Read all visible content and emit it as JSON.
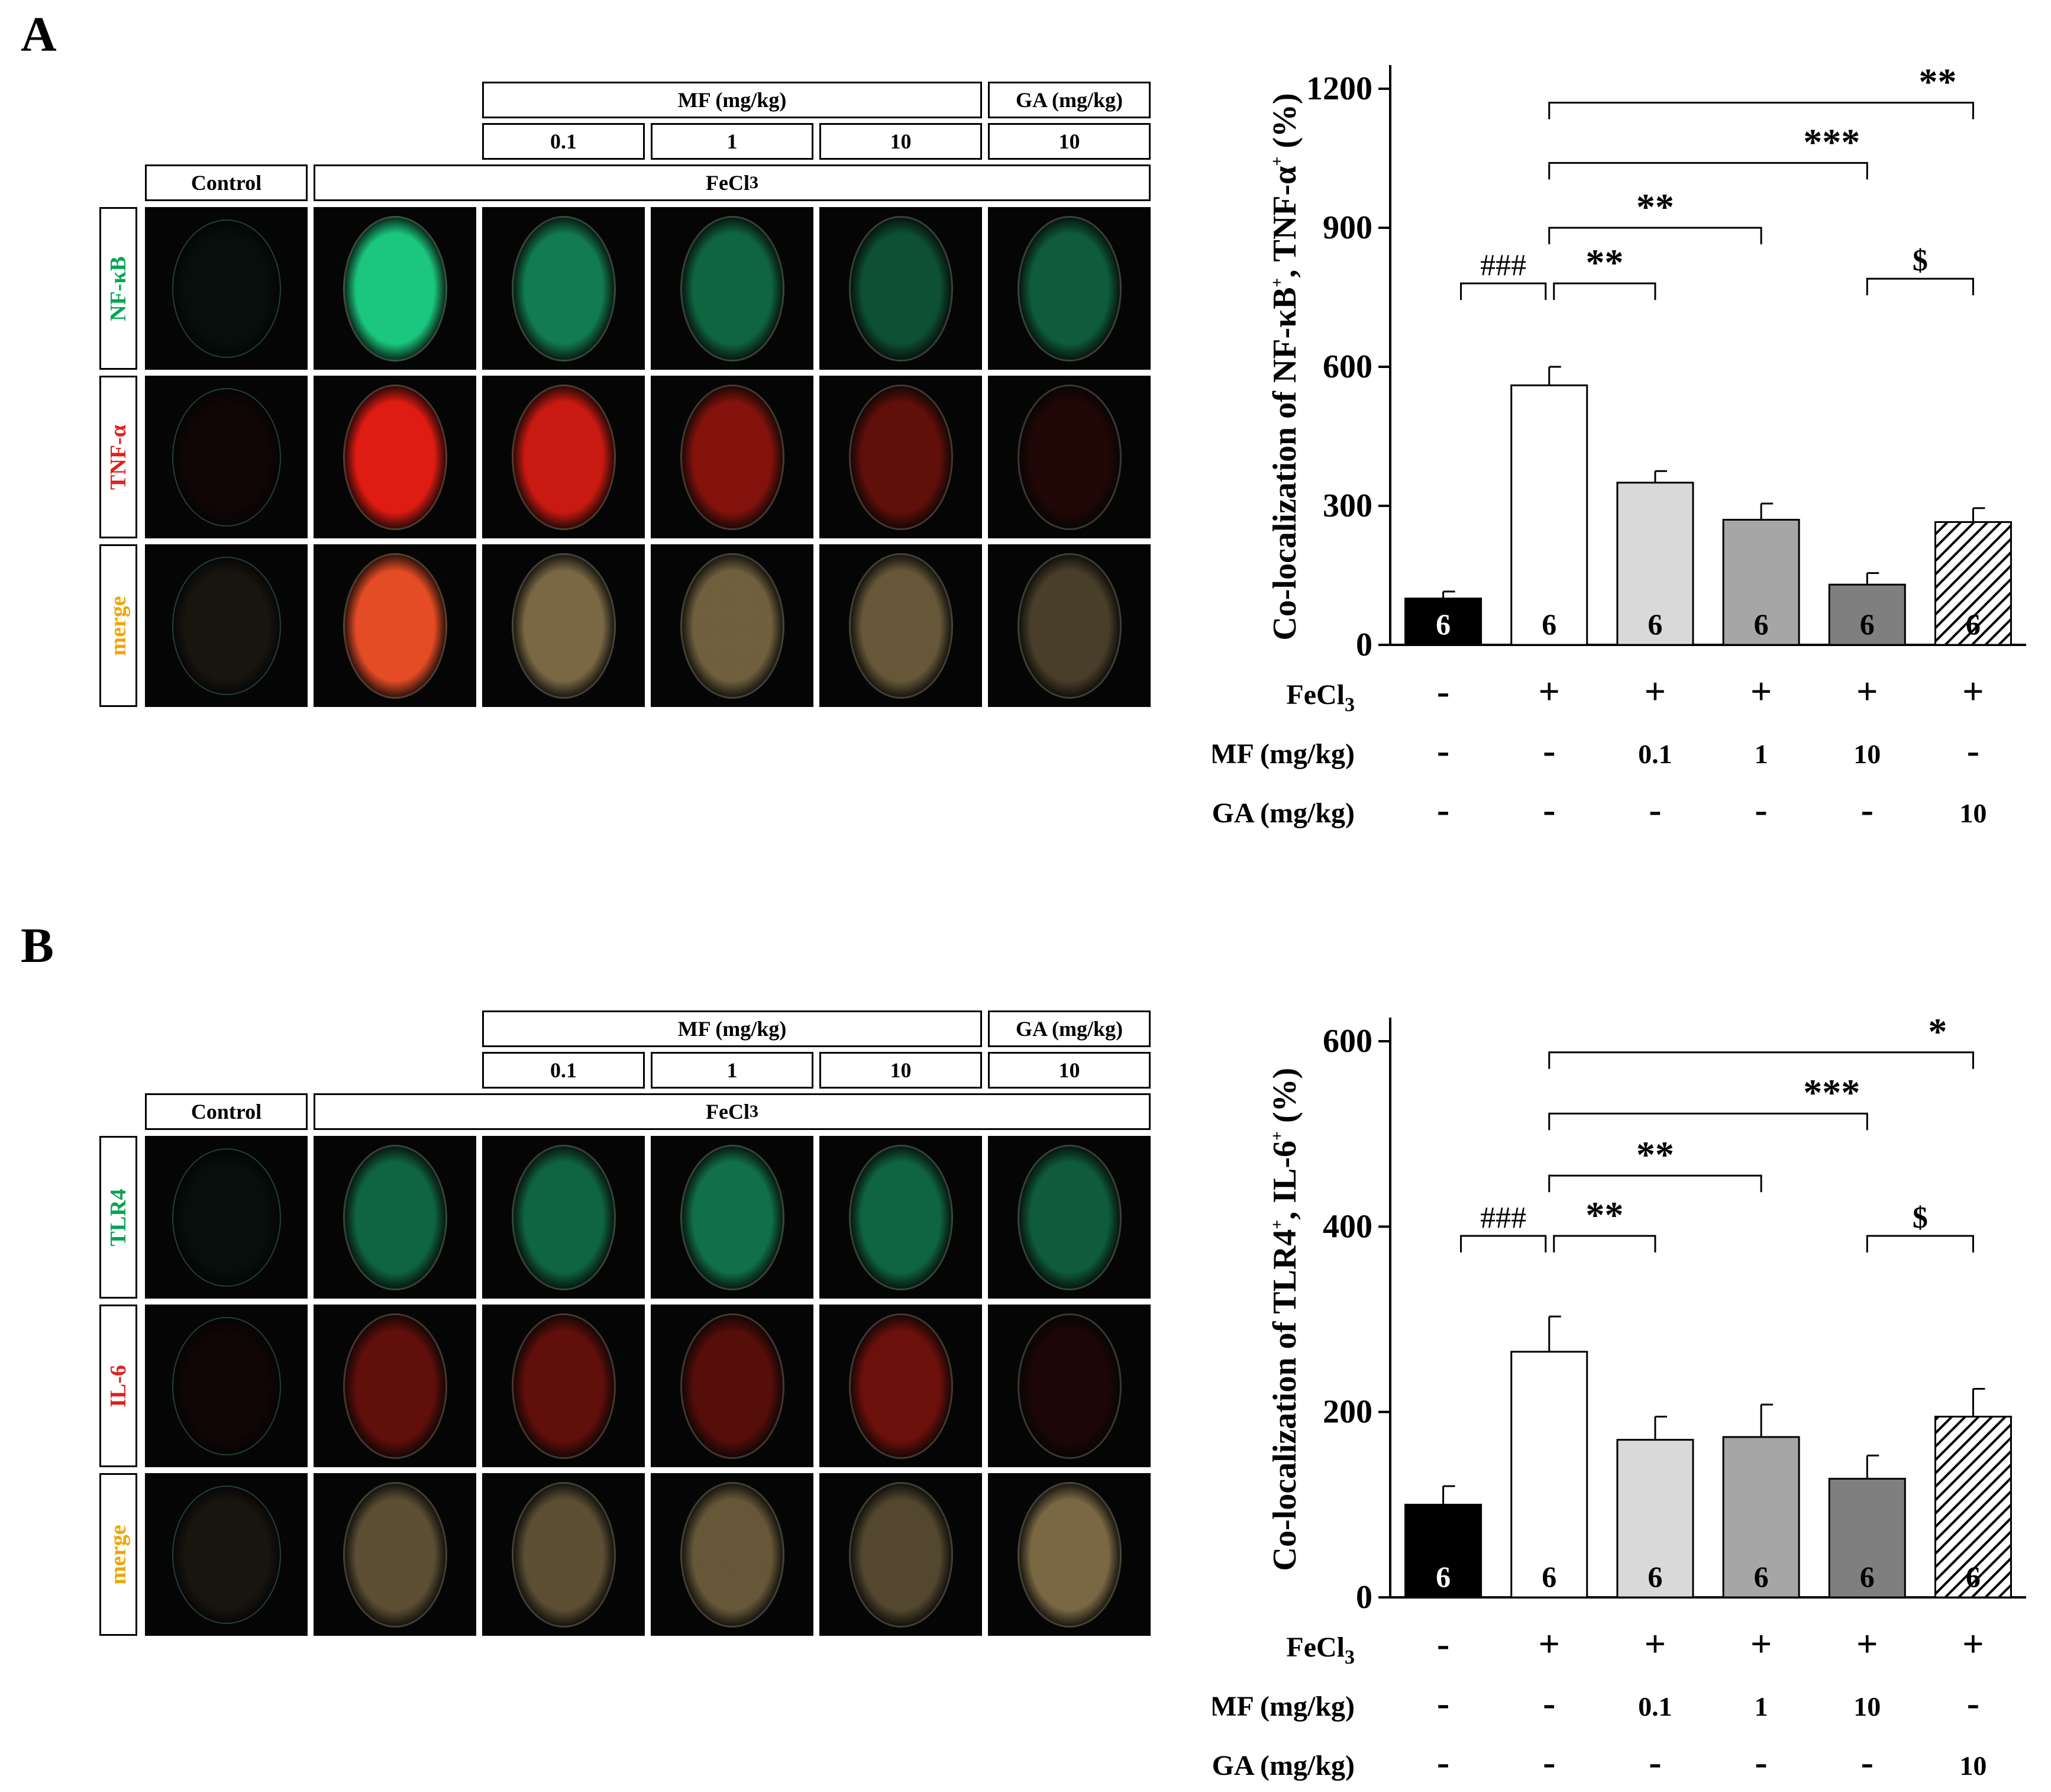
{
  "panels": [
    {
      "label": "A",
      "column_headers": {
        "mf_group": "MF (mg/kg)",
        "ga_group": "GA (mg/kg)",
        "doses": [
          "0.1",
          "1",
          "10",
          "10"
        ],
        "control": "Control",
        "fecl3_html": "FeCl<sub>3</sub>"
      },
      "rows": [
        {
          "name": "NF-κB",
          "color": "#00a651"
        },
        {
          "name": "TNF-α",
          "color": "#e0201b"
        },
        {
          "name": "merge",
          "color": "#f0a500"
        }
      ],
      "staining": {
        "green": [
          0.05,
          0.9,
          0.55,
          0.45,
          0.35,
          0.4
        ],
        "red": [
          0.05,
          0.95,
          0.85,
          0.55,
          0.4,
          0.12
        ],
        "merge": [
          0.1,
          0.95,
          0.6,
          0.55,
          0.5,
          0.35
        ]
      },
      "chart_data": {
        "type": "bar",
        "ylabel_html": "Co-localization of NF-κB<tspan font-size='28' dy='-22'>+</tspan><tspan dy='22'>, TNF-α</tspan><tspan font-size='28' dy='-22'>+</tspan><tspan dy='22'> (%)</tspan>",
        "ylim": [
          0,
          1200
        ],
        "yticks": [
          "0",
          "300",
          "600",
          "900",
          "1200"
        ],
        "values": [
          100,
          560,
          350,
          270,
          130,
          265
        ],
        "errors": [
          15,
          40,
          25,
          35,
          25,
          30
        ],
        "n": [
          "6",
          "6",
          "6",
          "6",
          "6",
          "6"
        ],
        "fills": [
          "#000000",
          "#ffffff",
          "#d9d9d9",
          "#a6a6a6",
          "#7f7f7f",
          "hatch"
        ],
        "treatment_rows": [
          {
            "label": "FeCl3",
            "values": [
              "-",
              "+",
              "+",
              "+",
              "+",
              "+"
            ]
          },
          {
            "label": "MF (mg/kg)",
            "values": [
              "-",
              "-",
              "0.1",
              "1",
              "10",
              "-"
            ]
          },
          {
            "label": "GA (mg/kg)",
            "values": [
              "-",
              "-",
              "-",
              "-",
              "-",
              "10"
            ]
          }
        ],
        "significance": [
          {
            "from": 0,
            "to": 1,
            "label": "###",
            "y": 780
          },
          {
            "from": 1,
            "to": 2,
            "label": "**",
            "y": 780
          },
          {
            "from": 4,
            "to": 5,
            "label": "$",
            "y": 790
          },
          {
            "from": 1,
            "to": 3,
            "label": "**",
            "y": 900
          },
          {
            "from": 1,
            "to": 4,
            "label": "***",
            "y": 1040
          },
          {
            "from": 1,
            "to": 5,
            "label": "**",
            "y": 1170
          }
        ]
      }
    },
    {
      "label": "B",
      "column_headers": {
        "mf_group": "MF (mg/kg)",
        "ga_group": "GA (mg/kg)",
        "doses": [
          "0.1",
          "1",
          "10",
          "10"
        ],
        "control": "Control",
        "fecl3_html": "FeCl<sub>3</sub>"
      },
      "rows": [
        {
          "name": "TLR4",
          "color": "#00a651"
        },
        {
          "name": "IL-6",
          "color": "#e0201b"
        },
        {
          "name": "merge",
          "color": "#f0a500"
        }
      ],
      "staining": {
        "green": [
          0.05,
          0.45,
          0.45,
          0.5,
          0.45,
          0.4
        ],
        "red": [
          0.05,
          0.4,
          0.4,
          0.35,
          0.45,
          0.1
        ],
        "merge": [
          0.1,
          0.45,
          0.45,
          0.5,
          0.4,
          0.6
        ]
      },
      "chart_data": {
        "type": "bar",
        "ylabel_html": "Co-localization of TLR4<tspan font-size='28' dy='-22'>+</tspan><tspan dy='22'>, IL-6</tspan><tspan font-size='28' dy='-22'>+</tspan><tspan dy='22'> (%)</tspan>",
        "ylim": [
          0,
          600
        ],
        "yticks": [
          "0",
          "200",
          "400",
          "600"
        ],
        "values": [
          100,
          265,
          170,
          173,
          128,
          195
        ],
        "errors": [
          20,
          38,
          25,
          35,
          25,
          30
        ],
        "n": [
          "6",
          "6",
          "6",
          "6",
          "6",
          "6"
        ],
        "fills": [
          "#000000",
          "#ffffff",
          "#d9d9d9",
          "#a6a6a6",
          "#7f7f7f",
          "hatch"
        ],
        "treatment_rows": [
          {
            "label": "FeCl3",
            "values": [
              "-",
              "+",
              "+",
              "+",
              "+",
              "+"
            ]
          },
          {
            "label": "MF (mg/kg)",
            "values": [
              "-",
              "-",
              "0.1",
              "1",
              "10",
              "-"
            ]
          },
          {
            "label": "GA (mg/kg)",
            "values": [
              "-",
              "-",
              "-",
              "-",
              "-",
              "10"
            ]
          }
        ],
        "significance": [
          {
            "from": 0,
            "to": 1,
            "label": "###",
            "y": 390
          },
          {
            "from": 1,
            "to": 2,
            "label": "**",
            "y": 390
          },
          {
            "from": 4,
            "to": 5,
            "label": "$",
            "y": 390
          },
          {
            "from": 1,
            "to": 3,
            "label": "**",
            "y": 455
          },
          {
            "from": 1,
            "to": 4,
            "label": "***",
            "y": 522
          },
          {
            "from": 1,
            "to": 5,
            "label": "*",
            "y": 588
          }
        ]
      }
    }
  ]
}
